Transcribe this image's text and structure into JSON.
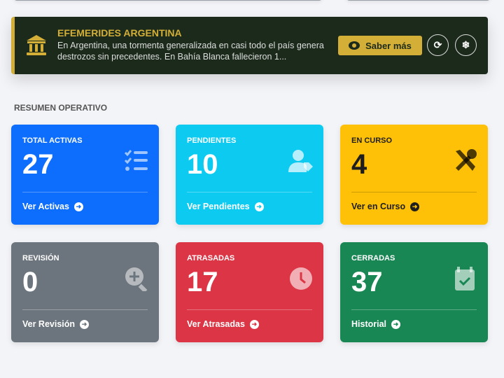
{
  "banner": {
    "title": "EFEMERIDES ARGENTINA",
    "text": "En Argentina, una tormenta generalizada en casi todo el país genera destrozos sin precedentes. En Bahía Blanca fallecieron 1...",
    "more_label": "Saber más",
    "icons": [
      "bank-icon",
      "eye-icon",
      "refresh-icon",
      "snowflake-icon"
    ],
    "accent": "#d4af37"
  },
  "section_title": "RESUMEN OPERATIVO",
  "cards": [
    {
      "label": "TOTAL ACTIVAS",
      "value": "27",
      "link": "Ver Activas",
      "color": "#0d6efd",
      "icon": "list-check-icon"
    },
    {
      "label": "PENDIENTES",
      "value": "10",
      "link": "Ver Pendientes",
      "color": "#0dcaf0",
      "icon": "user-tag-icon"
    },
    {
      "label": "EN CURSO",
      "value": "4",
      "link": "Ver en Curso",
      "color": "#ffc107",
      "icon": "tools-icon"
    },
    {
      "label": "REVISIÓN",
      "value": "0",
      "link": "Ver Revisión",
      "color": "#6c757d",
      "icon": "search-plus-icon"
    },
    {
      "label": "ATRASADAS",
      "value": "17",
      "link": "Ver Atrasadas",
      "color": "#dc3545",
      "icon": "clock-icon"
    },
    {
      "label": "CERRADAS",
      "value": "37",
      "link": "Historial",
      "color": "#198754",
      "icon": "calendar-check-icon"
    }
  ]
}
